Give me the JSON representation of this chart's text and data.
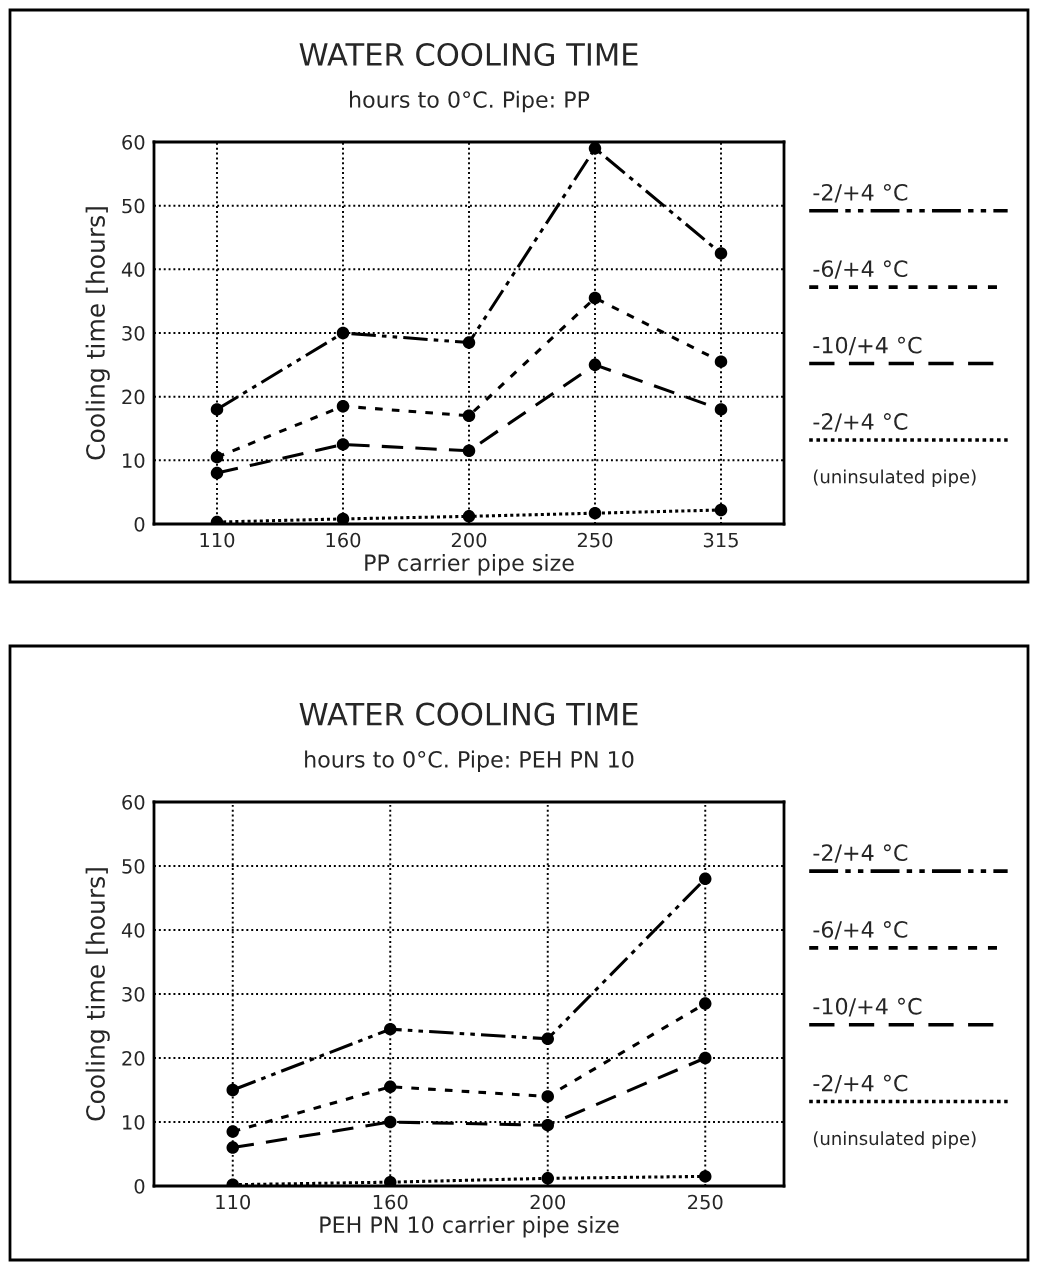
{
  "chart_data": [
    {
      "type": "line",
      "title": "WATER COOLING TIME",
      "subtitle": "hours to 0°C. Pipe: PP",
      "xlabel": "PP carrier pipe size",
      "ylabel": "Cooling time [hours]",
      "categories": [
        "110",
        "160",
        "200",
        "250",
        "315"
      ],
      "ylim": [
        0,
        60
      ],
      "yticks": [
        0,
        10,
        20,
        30,
        40,
        50,
        60
      ],
      "grid": true,
      "legend": "right",
      "marker": "circle",
      "series": [
        {
          "name": "-2/+4 °C",
          "color": "#000000",
          "line_style": "dashdotdot",
          "values": [
            18,
            30,
            28.5,
            59,
            42.5
          ]
        },
        {
          "name": "-6/+4 °C",
          "color": "#000000",
          "line_style": "short_dashed",
          "values": [
            10.5,
            18.5,
            17,
            35.5,
            25.5
          ]
        },
        {
          "name": "-10/+4 °C",
          "color": "#000000",
          "line_style": "dashed",
          "values": [
            8,
            12.5,
            11.5,
            25,
            18
          ]
        },
        {
          "name": "-2/+4 °C",
          "color": "#000000",
          "line_style": "dotted",
          "values": [
            0.3,
            0.8,
            1.2,
            1.7,
            2.2
          ]
        }
      ],
      "annotations": [
        "(uninsulated pipe)"
      ]
    },
    {
      "type": "line",
      "title": "WATER COOLING TIME",
      "subtitle": "hours to 0°C. Pipe: PEH PN 10",
      "xlabel": "PEH PN 10 carrier pipe size",
      "ylabel": "Cooling time [hours]",
      "categories": [
        "110",
        "160",
        "200",
        "250"
      ],
      "ylim": [
        0,
        60
      ],
      "yticks": [
        0,
        10,
        20,
        30,
        40,
        50,
        60
      ],
      "grid": true,
      "legend": "right",
      "marker": "circle",
      "series": [
        {
          "name": "-2/+4 °C",
          "color": "#000000",
          "line_style": "dashdotdot",
          "values": [
            15,
            24.5,
            23,
            48
          ]
        },
        {
          "name": "-6/+4 °C",
          "color": "#000000",
          "line_style": "short_dashed",
          "values": [
            8.5,
            15.5,
            14,
            28.5
          ]
        },
        {
          "name": "-10/+4 °C",
          "color": "#000000",
          "line_style": "dashed",
          "values": [
            6,
            10,
            9.5,
            20
          ]
        },
        {
          "name": "-2/+4 °C",
          "color": "#000000",
          "line_style": "dotted",
          "values": [
            0.2,
            0.6,
            1.2,
            1.5
          ]
        }
      ],
      "annotations": [
        "(uninsulated pipe)"
      ]
    }
  ]
}
